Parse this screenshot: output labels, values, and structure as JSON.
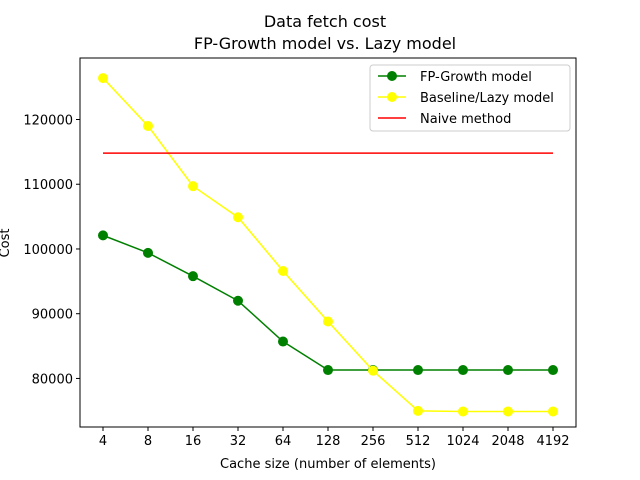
{
  "chart_data": {
    "type": "line",
    "title": "Data fetch cost",
    "subtitle": "FP-Growth model vs. Lazy model",
    "xlabel": "Cache size (number of elements)",
    "ylabel": "Cost",
    "categories": [
      "4",
      "8",
      "16",
      "32",
      "64",
      "128",
      "256",
      "512",
      "1024",
      "2048",
      "4192"
    ],
    "ylim": [
      72500,
      129500
    ],
    "yticks": [
      80000,
      90000,
      100000,
      110000,
      120000
    ],
    "ytick_labels": [
      "80000",
      "90000",
      "100000",
      "110000",
      "120000"
    ],
    "legend_position": "upper right",
    "grid": false,
    "series": [
      {
        "name": "FP-Growth model",
        "color": "#008000",
        "marker": "circle",
        "values": [
          102100,
          99400,
          95800,
          92000,
          85700,
          81300,
          81300,
          81300,
          81300,
          81300,
          81300
        ]
      },
      {
        "name": "Baseline/Lazy model",
        "color": "#ffff00",
        "marker": "circle",
        "values": [
          126400,
          119000,
          109700,
          104900,
          96600,
          88800,
          81200,
          75000,
          74900,
          74900,
          74900
        ]
      },
      {
        "name": "Naive method",
        "color": "#ff0000",
        "marker": "none",
        "values": [
          114800,
          114800,
          114800,
          114800,
          114800,
          114800,
          114800,
          114800,
          114800,
          114800,
          114800
        ]
      }
    ]
  }
}
